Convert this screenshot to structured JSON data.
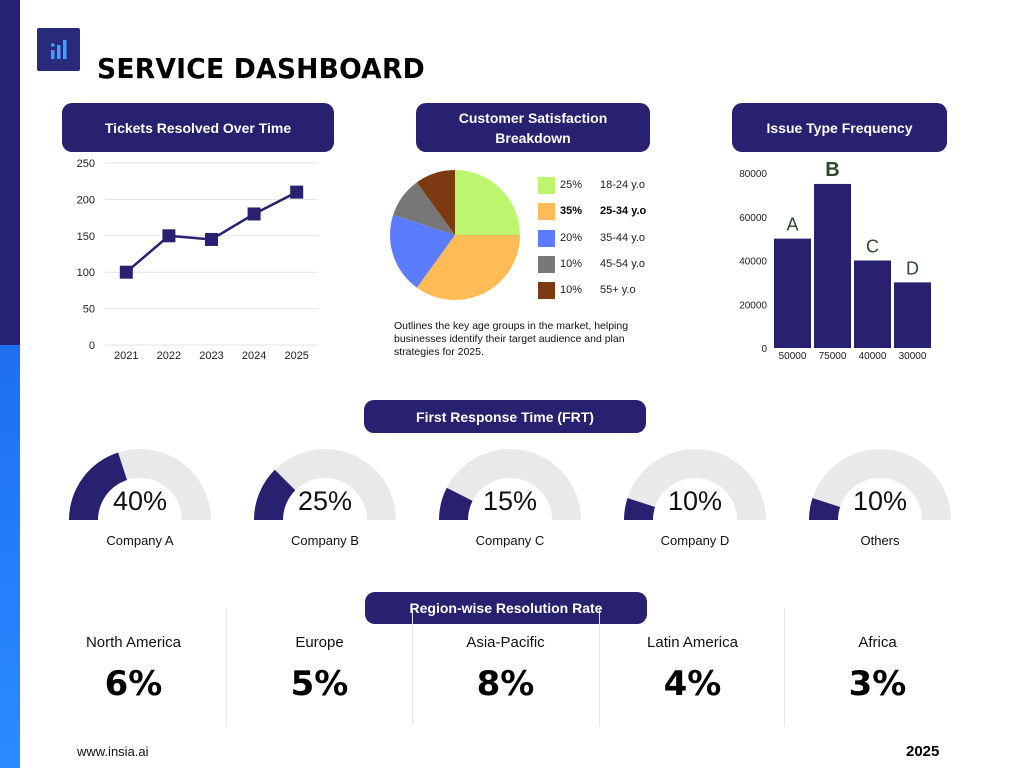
{
  "header": {
    "title": "SERVICE DASHBOARD",
    "logo_icon": "bar-chart-icon"
  },
  "colors": {
    "navy": "#27216f",
    "sidebar_dark": "#272175",
    "sidebar_blue": "#1e6ff0",
    "gauge_track": "#e9e9e9"
  },
  "line_chart": {
    "pill": "Tickets Resolved Over Time"
  },
  "pie_chart": {
    "pill": "Customer Satisfaction Breakdown",
    "note": "Outlines the key age groups in the market, helping businesses identify their target audience and plan strategies for 2025."
  },
  "bar_chart": {
    "pill": "Issue Type Frequency"
  },
  "frt": {
    "pill": "First Response Time (FRT)",
    "gauges": [
      {
        "value_label": "40%",
        "company": "Company A",
        "value": 0.4
      },
      {
        "value_label": "25%",
        "company": "Company B",
        "value": 0.25
      },
      {
        "value_label": "15%",
        "company": "Company C",
        "value": 0.15
      },
      {
        "value_label": "10%",
        "company": "Company D",
        "value": 0.1
      },
      {
        "value_label": "10%",
        "company": "Others",
        "value": 0.1
      }
    ]
  },
  "regions": {
    "pill": "Region-wise Resolution Rate",
    "items": [
      {
        "name": "North America",
        "value": "6%"
      },
      {
        "name": "Europe",
        "value": "5%"
      },
      {
        "name": "Asia-Pacific",
        "value": "8%"
      },
      {
        "name": "Latin America",
        "value": "4%"
      },
      {
        "name": "Africa",
        "value": "3%"
      }
    ]
  },
  "footer": {
    "url": "www.insia.ai",
    "year": "2025"
  },
  "chart_data": [
    {
      "type": "line",
      "title": "Tickets Resolved Over Time",
      "x": [
        "2021",
        "2022",
        "2023",
        "2024",
        "2025"
      ],
      "values": [
        100,
        150,
        145,
        180,
        210
      ],
      "yticks": [
        0,
        50,
        100,
        150,
        200,
        250
      ],
      "ylim": [
        0,
        250
      ],
      "grid": true,
      "color": "#27216f"
    },
    {
      "type": "pie",
      "title": "Customer Satisfaction Breakdown",
      "slices": [
        {
          "label": "18-24 y.o",
          "pct_label": "25%",
          "value": 25,
          "color": "#bdf56e",
          "bold": false
        },
        {
          "label": "25-34 y.o",
          "pct_label": "35%",
          "value": 35,
          "color": "#ffbb55",
          "bold": true
        },
        {
          "label": "35-44 y.o",
          "pct_label": "20%",
          "value": 20,
          "color": "#5b7cff",
          "bold": false
        },
        {
          "label": "45-54 y.o",
          "pct_label": "10%",
          "value": 10,
          "color": "#777777",
          "bold": false
        },
        {
          "label": "55+ y.o",
          "pct_label": "10%",
          "value": 10,
          "color": "#7d3a11",
          "bold": false
        }
      ]
    },
    {
      "type": "bar",
      "title": "Issue Type Frequency",
      "categories": [
        "50000",
        "75000",
        "40000",
        "30000"
      ],
      "bar_labels": [
        "A",
        "B",
        "C",
        "D"
      ],
      "values": [
        50000,
        75000,
        40000,
        30000
      ],
      "yticks": [
        0,
        20000,
        40000,
        60000,
        80000
      ],
      "ylim": [
        0,
        80000
      ],
      "color": "#27216f"
    }
  ]
}
